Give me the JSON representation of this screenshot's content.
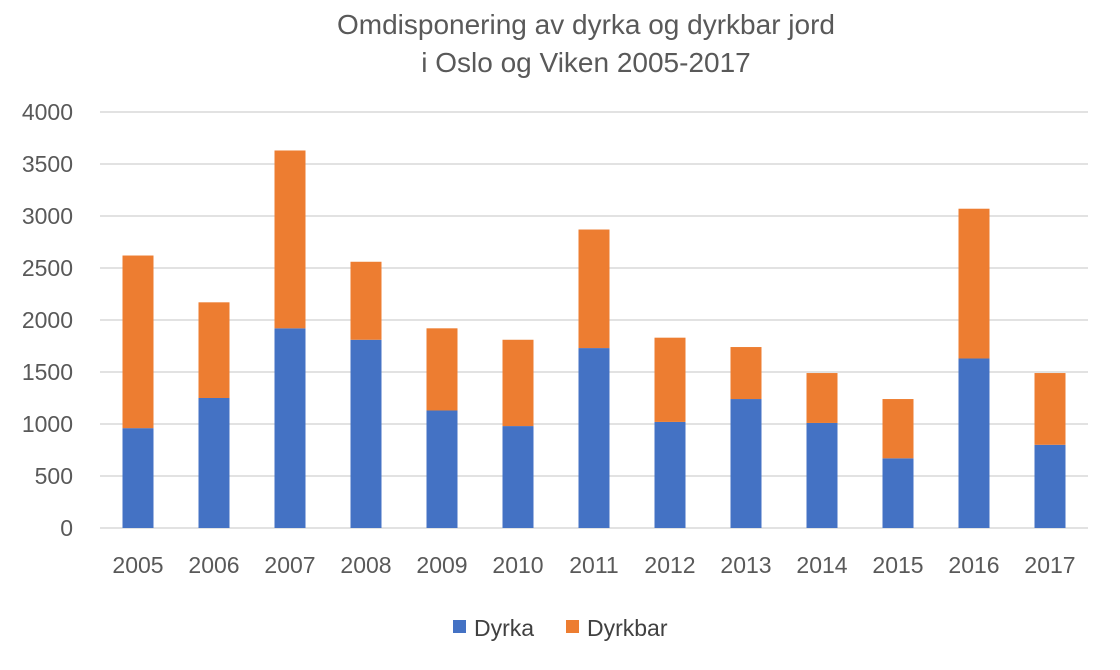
{
  "chart_data": {
    "type": "bar",
    "stacked": true,
    "title_lines": [
      "Omdisponering av dyrka og dyrkbar jord",
      "i Oslo og Viken 2005-2017"
    ],
    "xlabel": "",
    "ylabel": "",
    "ylim": [
      0,
      4000
    ],
    "yticks": [
      "0",
      "500",
      "1000",
      "1500",
      "2000",
      "2500",
      "3000",
      "3500",
      "4000"
    ],
    "grid": true,
    "legend_position": "bottom",
    "categories": [
      "2005",
      "2006",
      "2007",
      "2008",
      "2009",
      "2010",
      "2011",
      "2012",
      "2013",
      "2014",
      "2015",
      "2016",
      "2017"
    ],
    "series": [
      {
        "name": "Dyrka",
        "color": "#4472C4",
        "values": [
          960,
          1250,
          1920,
          1810,
          1130,
          980,
          1730,
          1020,
          1240,
          1010,
          670,
          1630,
          800
        ]
      },
      {
        "name": "Dyrkbar",
        "color": "#ED7D31",
        "values": [
          1660,
          920,
          1710,
          750,
          790,
          830,
          1140,
          810,
          500,
          480,
          570,
          1440,
          690
        ]
      }
    ]
  }
}
